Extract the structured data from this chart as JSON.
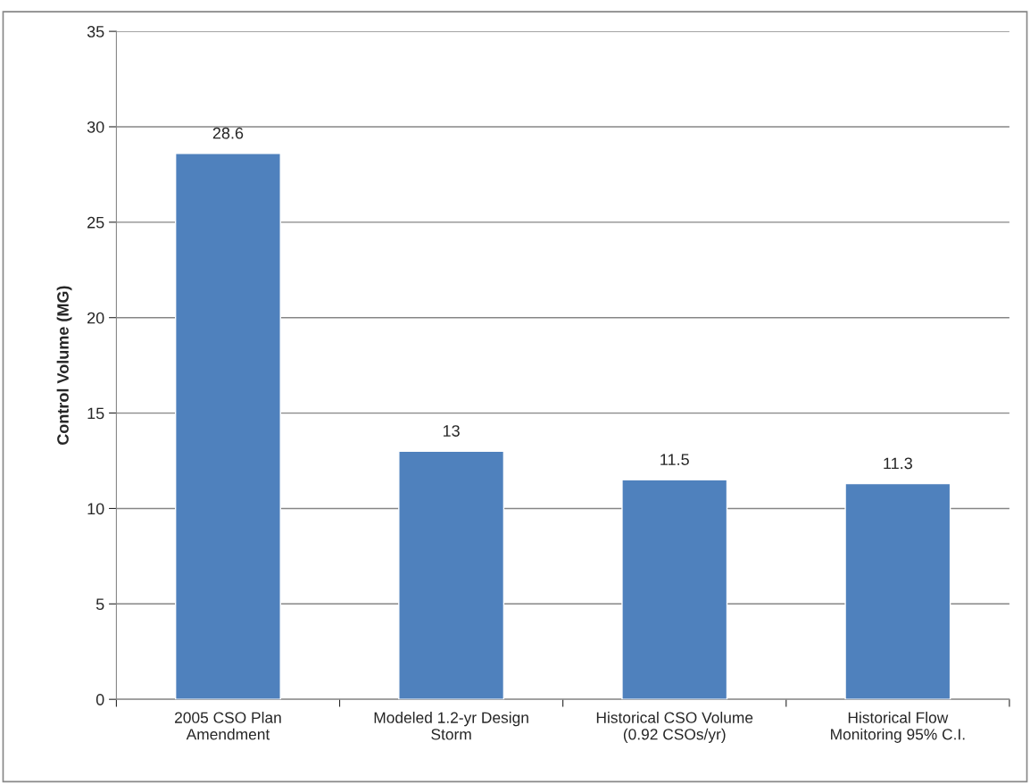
{
  "chart_data": {
    "type": "bar",
    "ylabel": "Control Volume (MG)",
    "categories": [
      "2005 CSO Plan\nAmendment",
      "Modeled 1.2-yr Design\nStorm",
      "Historical CSO Volume\n(0.92 CSOs/yr)",
      "Historical Flow\nMonitoring 95% C.I."
    ],
    "values": [
      28.6,
      13,
      11.5,
      11.3
    ],
    "color": "#4f81bd",
    "ylim": [
      0,
      35
    ],
    "yticks": [
      0,
      5,
      10,
      15,
      20,
      25,
      30,
      35
    ],
    "grid": "y",
    "data_labels": true
  }
}
